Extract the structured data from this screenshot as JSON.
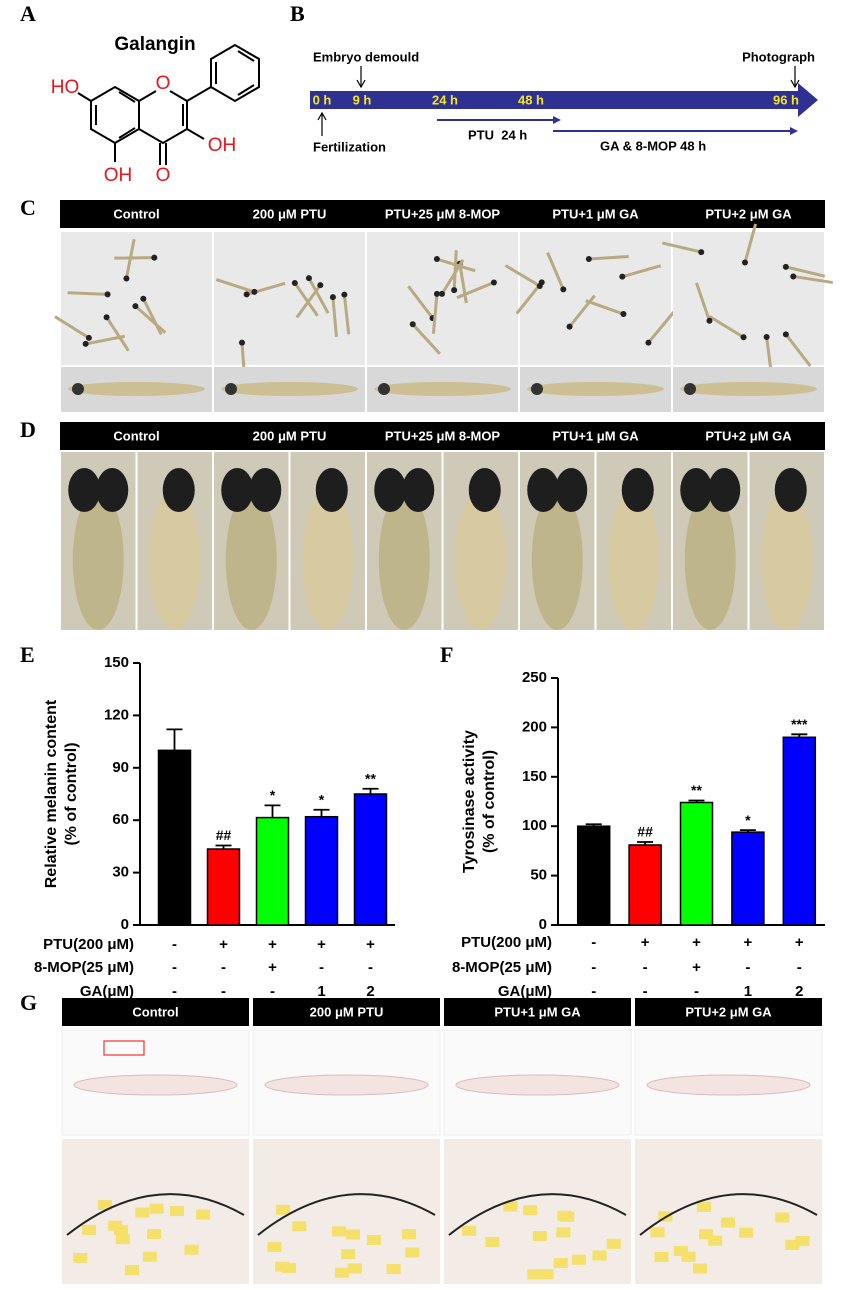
{
  "labels": [
    "A",
    "B",
    "C",
    "D",
    "E",
    "F",
    "G"
  ],
  "structure": {
    "title": "Galangin",
    "atoms": [
      "HO",
      "O",
      "OH",
      "O",
      "OH"
    ]
  },
  "timeline": {
    "events": [
      "Embryo demould",
      "Photograph",
      "Fertilization"
    ],
    "times": [
      "0 h",
      "9 h",
      "24 h",
      "48 h",
      "96 h"
    ],
    "treatments": [
      "PTU  24 h",
      "GA & 8-MOP 48 h"
    ]
  },
  "panel_c": {
    "headers": [
      "Control",
      "200 μM PTU",
      "PTU+25 μM 8-MOP",
      "PTU+1 μM GA",
      "PTU+2 μM GA"
    ]
  },
  "panel_d": {
    "headers": [
      "Control",
      "200 μM PTU",
      "PTU+25 μM 8-MOP",
      "PTU+1 μM GA",
      "PTU+2 μM GA"
    ]
  },
  "panel_g": {
    "headers": [
      "Control",
      "200 μM PTU",
      "PTU+1 μM GA",
      "PTU+2 μM GA"
    ]
  },
  "chart_data": [
    {
      "type": "bar",
      "ylabel": [
        "Relative melanin content",
        "(% of control)"
      ],
      "ylim": [
        0,
        150
      ],
      "yticks": [
        0,
        30,
        60,
        90,
        120,
        150
      ],
      "values": [
        100,
        43.5,
        61.5,
        62,
        75
      ],
      "errors": [
        12,
        2,
        7,
        4,
        3
      ],
      "colors": [
        "#000000",
        "#ff0000",
        "#00ff00",
        "#0000ff",
        "#0000ff"
      ],
      "annotations": [
        null,
        "##",
        "*",
        "*",
        "**"
      ],
      "conditions": [
        {
          "name": "PTU(200 μM)",
          "values": [
            "-",
            "+",
            "+",
            "+",
            "+"
          ]
        },
        {
          "name": "8-MOP(25 μM)",
          "values": [
            "-",
            "-",
            "+",
            "-",
            "-"
          ]
        },
        {
          "name": "GA(μM)",
          "values": [
            "-",
            "-",
            "-",
            "1",
            "2"
          ]
        }
      ]
    },
    {
      "type": "bar",
      "ylabel": [
        "Tyrosinase activity",
        "(% of control)"
      ],
      "ylim": [
        0,
        250
      ],
      "yticks": [
        0,
        50,
        100,
        150,
        200,
        250
      ],
      "values": [
        100,
        81,
        124,
        94,
        190
      ],
      "errors": [
        2,
        3,
        2,
        2,
        3
      ],
      "colors": [
        "#000000",
        "#ff0000",
        "#00ff00",
        "#0000ff",
        "#0000ff"
      ],
      "annotations": [
        null,
        "##",
        "**",
        "*",
        "***"
      ],
      "conditions": [
        {
          "name": "PTU(200 μM)",
          "values": [
            "-",
            "+",
            "+",
            "+",
            "+"
          ]
        },
        {
          "name": "8-MOP(25 μM)",
          "values": [
            "-",
            "-",
            "+",
            "-",
            "-"
          ]
        },
        {
          "name": "GA(μM)",
          "values": [
            "-",
            "-",
            "-",
            "1",
            "2"
          ]
        }
      ]
    }
  ]
}
